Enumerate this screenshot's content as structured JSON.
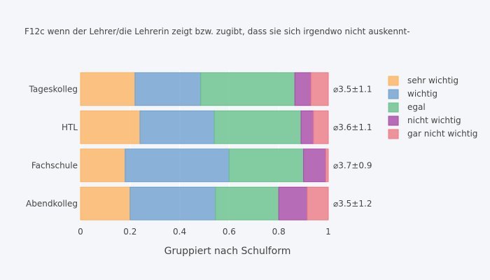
{
  "chart_data": {
    "type": "bar",
    "orientation": "horizontal",
    "stacked": true,
    "title": "F12c wenn der Lehrer/die Lehrerin zeigt bzw. zugibt, dass sie sich irgendwo nicht auskennt-",
    "xlabel": "Gruppiert nach Schulform",
    "ylabel": "",
    "xlim": [
      0,
      1.18
    ],
    "xticks": [
      "0",
      "0.2",
      "0.4",
      "0.6",
      "0.8",
      "1"
    ],
    "grid": true,
    "legend_position": "right",
    "categories": [
      "Tageskolleg",
      "HTL",
      "Fachschule",
      "Abendkolleg"
    ],
    "annotations": [
      "⌀3.5±1.1",
      "⌀3.6±1.1",
      "⌀3.7±0.9",
      "⌀3.5±1.2"
    ],
    "series": [
      {
        "name": "sehr wichtig",
        "color": "#fdb462",
        "values": [
          0.22,
          0.24,
          0.18,
          0.2
        ]
      },
      {
        "name": "wichtig",
        "color": "#6fa0cf",
        "values": [
          0.265,
          0.3,
          0.42,
          0.345
        ]
      },
      {
        "name": "egal",
        "color": "#66c08a",
        "values": [
          0.38,
          0.35,
          0.3,
          0.255
        ]
      },
      {
        "name": "nicht wichtig",
        "color": "#a84aa8",
        "values": [
          0.065,
          0.05,
          0.09,
          0.115
        ]
      },
      {
        "name": "gar nicht wichtig",
        "color": "#ec7a84",
        "values": [
          0.07,
          0.06,
          0.01,
          0.085
        ]
      }
    ]
  }
}
